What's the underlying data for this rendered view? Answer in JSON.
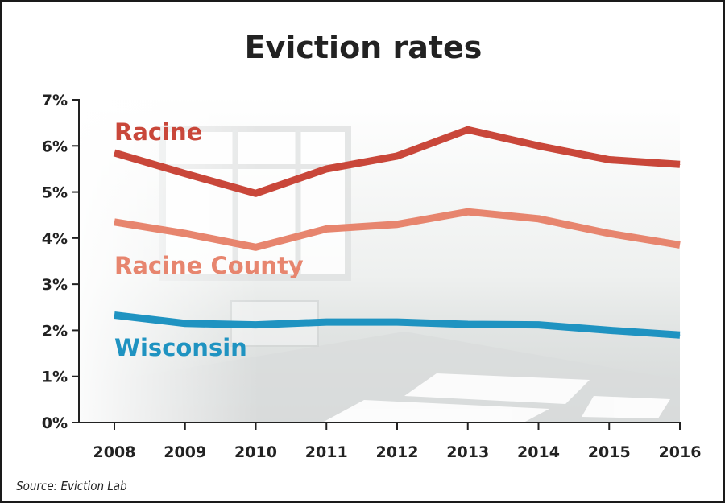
{
  "chart_data": {
    "type": "line",
    "title": "Eviction rates",
    "xlabel": "",
    "ylabel": "",
    "categories": [
      "2008",
      "2009",
      "2010",
      "2011",
      "2012",
      "2013",
      "2014",
      "2015",
      "2016"
    ],
    "y_ticks": [
      "0%",
      "1%",
      "2%",
      "3%",
      "4%",
      "5%",
      "6%",
      "7%"
    ],
    "ylim": [
      0,
      7
    ],
    "grid": false,
    "legend": "inline labels",
    "series": [
      {
        "name": "Racine",
        "color": "#c9473a",
        "values": [
          5.85,
          5.4,
          4.97,
          5.5,
          5.78,
          6.35,
          6.0,
          5.7,
          5.6
        ]
      },
      {
        "name": "Racine County",
        "color": "#e7856e",
        "values": [
          4.35,
          4.1,
          3.8,
          4.2,
          4.3,
          4.57,
          4.42,
          4.1,
          3.85
        ]
      },
      {
        "name": "Wisconsin",
        "color": "#1f93c1",
        "values": [
          2.33,
          2.15,
          2.12,
          2.18,
          2.18,
          2.13,
          2.12,
          2.0,
          1.9
        ]
      }
    ],
    "source": "Source: Eviction Lab"
  }
}
